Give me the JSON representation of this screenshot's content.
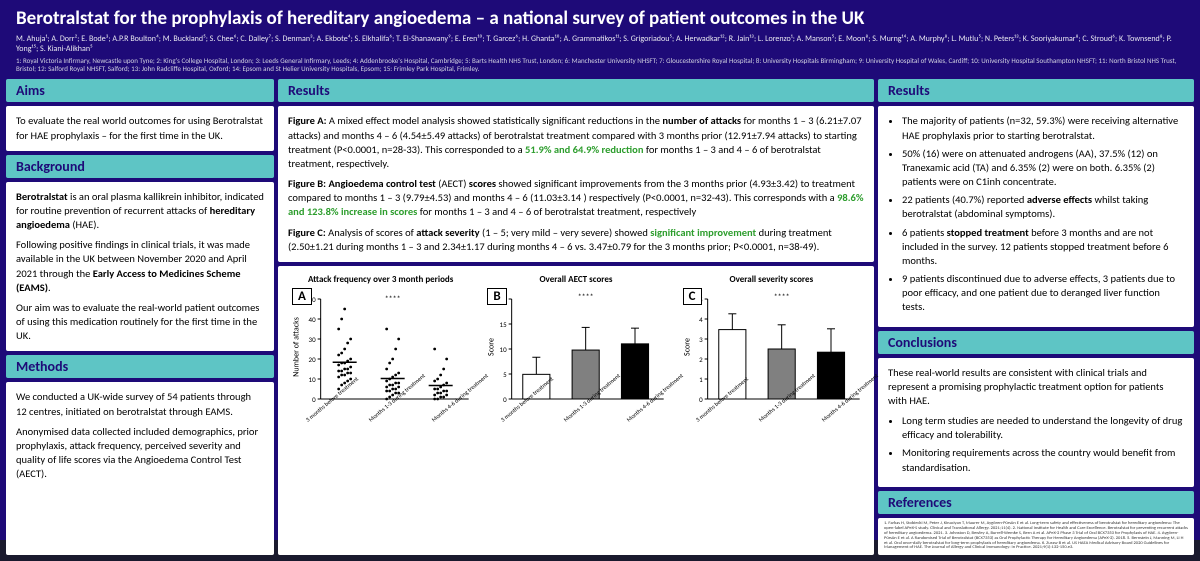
{
  "header": {
    "title": "Berotralstat for the prophylaxis of hereditary angioedema – a national survey of patient outcomes in the UK",
    "authors": "M. Ahuja¹; A. Dorr²; E. Bode³; A.P.R Boulton⁴; M. Buckland⁵; S. Chee⁶; C. Dalley⁷; S. Denman³; A. Ekbote⁴; S. Elkhalifa⁶; T. El-Shanawany⁹; E. Eren¹⁰; T. Garcez⁶; H. Ghanta¹⁰; A. Grammatikos¹¹; S. Grigoriadou⁵; A. Herwadkar¹²; R. Jain¹³; L. Lorenzo¹; A. Manson⁵; E. Moon⁸; S. Murng¹⁴; A. Murphy⁸; L. Mutlu⁵; N. Peters¹³; K. Sooriyakumar⁸; C. Stroud⁶; K. Townsend⁸; P. Yong¹⁵; S. Kiani-Alikhan⁵",
    "affils": "1: Royal Victoria Infirmary, Newcastle upon Tyne; 2: King's College Hospital, London; 3: Leeds General Infirmary, Leeds; 4: Addenbrooke's Hospital, Cambridge; 5: Barts Health NHS Trust, London; 6: Manchester University NHSFT; 7: Gloucestershire Royal Hospital; 8: University Hospitals Birmingham; 9: University Hospital of Wales, Cardiff; 10: University Hospital Southampton NHSFT; 11: North Bristol NHS Trust, Bristol; 12: Salford Royal NHSFT, Salford; 13: John Radcliffe Hospital, Oxford; 14: Epsom and St Helier University Hospitals, Epsom; 15: Frimley Park Hospital, Frimley."
  },
  "labels": {
    "aims": "Aims",
    "background": "Background",
    "methods": "Methods",
    "results": "Results",
    "conclusions": "Conclusions",
    "references": "References"
  },
  "aims": {
    "p1": "To evaluate the real world outcomes for using Berotralstat for HAE prophylaxis – for the first time in the UK."
  },
  "background": {
    "p1a": "Berotralstat ",
    "p1b": "is an oral plasma kallikrein inhibitor, indicated for routine prevention of recurrent attacks of ",
    "p1c": "hereditary angioedema",
    "p1d": " (HAE).",
    "p2a": "Following positive findings in clinical trials, it was made available in the UK between November 2020 and April 2021 through the ",
    "p2b": "Early Access to Medicines Scheme (EAMS)",
    "p3": "Our aim was to evaluate the real-world patient outcomes of using this medication routinely for the first time in the UK."
  },
  "methods": {
    "p1": "We conducted a UK-wide survey of 54 patients through 12 centres, initiated on berotralstat through EAMS.",
    "p2": "Anonymised data collected included demographics, prior prophylaxis, attack frequency, perceived severity and quality of life scores via the Angioedema Control Test (AECT)."
  },
  "resultsMid": {
    "fa1": "Figure A:",
    "fa2": " A mixed effect model analysis showed statistically significant reductions in the ",
    "fa3": "number of attacks",
    "fa4": " for months 1 – 3 (6.21±7.07 attacks) and months 4 – 6 (4.54±5.49 attacks) of berotralstat treatment compared with 3 months prior (12.91±7.94 attacks) to starting treatment (P<0.0001, n=28-33). This corresponded to a ",
    "fa5": "51.9% and 64.9% reduction",
    "fa6": " for months 1 – 3 and 4 – 6 of berotralstat treatment, respectively.",
    "fb1": "Figure B: Angioedema control test",
    "fb2": " (AECT) ",
    "fb3": "scores",
    "fb4": " showed significant improvements from the 3 months prior (4.93±3.42) to treatment compared to months 1 – 3 (9.79±4.53) and months 4 – 6 (11.03±3.14 ) respectively (P<0.0001, n=32-43). This corresponds with a ",
    "fb5": "98.6% and 123.8% increase in scores",
    "fb6": " for months 1 – 3 and 4 – 6 of berotralstat treatment, respectively",
    "fc1": "Figure C:",
    "fc2": " Analysis of scores of ",
    "fc3": "attack severity",
    "fc4": " (1 – 5; very mild – very severe) showed ",
    "fc5": "significant improvement",
    "fc6": " during treatment (2.50±1.21 during months 1 – 3 and 2.34±1.17 during months 4 – 6 vs. 3.47±0.79 for the 3 months prior; P<0.0001, n=38-49)."
  },
  "charts": {
    "a": {
      "tag": "A",
      "title": "Attack frequency over 3 month periods",
      "ylabel": "Number of attacks",
      "ymax": 50,
      "ytick": 10,
      "points": [
        {
          "x": 0,
          "vals": [
            5,
            7,
            8,
            9,
            10,
            11,
            12,
            12,
            13,
            13,
            14,
            14,
            15,
            15,
            16,
            17,
            18,
            18,
            19,
            20,
            22,
            23,
            25,
            28,
            30,
            35,
            40,
            45
          ]
        },
        {
          "x": 1,
          "vals": [
            0,
            1,
            2,
            3,
            3,
            4,
            4,
            5,
            5,
            6,
            6,
            7,
            7,
            8,
            8,
            9,
            10,
            11,
            12,
            13,
            15,
            18,
            20,
            25,
            30,
            35
          ]
        },
        {
          "x": 2,
          "vals": [
            0,
            0,
            1,
            1,
            2,
            2,
            3,
            3,
            4,
            4,
            5,
            5,
            6,
            7,
            8,
            9,
            10,
            12,
            15,
            20,
            25
          ]
        }
      ],
      "cats": [
        "3 months before treatment",
        "Months 1-3 during treatment",
        "Months 4-6 during treatment"
      ]
    },
    "b": {
      "tag": "B",
      "title": "Overall AECT scores",
      "ylabel": "Score",
      "ymax": 20,
      "ytick": 5,
      "bars": [
        {
          "mean": 4.93,
          "sd": 3.42,
          "fill": "#ffffff"
        },
        {
          "mean": 9.79,
          "sd": 4.53,
          "fill": "#808080"
        },
        {
          "mean": 11.03,
          "sd": 3.14,
          "fill": "#000000"
        }
      ],
      "cats": [
        "3 months before treatment",
        "Months 1-3 during treatment",
        "Months 4-6 during treatment"
      ]
    },
    "c": {
      "tag": "C",
      "title": "Overall severity scores",
      "ylabel": "Score",
      "ymax": 5,
      "ytick": 1,
      "bars": [
        {
          "mean": 3.47,
          "sd": 0.79,
          "fill": "#ffffff"
        },
        {
          "mean": 2.5,
          "sd": 1.21,
          "fill": "#808080"
        },
        {
          "mean": 2.34,
          "sd": 1.17,
          "fill": "#000000"
        }
      ],
      "cats": [
        "3 months before treatment",
        "Months 1-3 during treatment",
        "Months 4-6 during treatment"
      ]
    },
    "sig": "****"
  },
  "resultsRight": {
    "li1": "The majority of patients (n=32, 59.3%) were receiving alternative HAE prophylaxis prior to starting berotralstat.",
    "li2": "50% (16) were on attenuated androgens (AA), 37.5% (12) on Tranexamic acid (TA) and 6.35% (2) were on both. 6.35% (2) patients were on C1inh concentrate.",
    "li3a": "22 patients (40.7%) reported ",
    "li3b": "adverse effects",
    "li3c": " whilst taking berotralstat (abdominal symptoms).",
    "li4a": "6 patients ",
    "li4b": "stopped treatment",
    "li4c": " before 3 months and are not included in the survey.  12 patients stopped treatment before 6 months.",
    "li5": "9 patients discontinued due to adverse effects, 3 patients due to poor efficacy, and one patient due to deranged liver function tests."
  },
  "conclusions": {
    "p1": "These real-world results are consistent with clinical trials and represent a promising prophylactic treatment option for patients with HAE.",
    "li1": "Long term studies are needed to understand the longevity of drug efficacy and tolerability.",
    "li2": "Monitoring requirements across the country would benefit from standardisation."
  },
  "references": "1. Farkas H, Stobiecki M, Peter J, Kinaciyan T, Maurer M, Aygören-Pürsün E et al. Long-term safety and effectiveness of berotralstat for hereditary angioedema: The open-label APeX-S study. Clinical and Translational Allergy. 2021;11(4). 2. National Institute for Health and Care Excellence. Berotralstat for preventing recurrent attacks of hereditary angioedema. 2021. 3. Johnston D, Bewley A, Burrell-Wemke S, Bern A et al. APeX-2 Phase 3 Trial of Oral BCX7353 for Prophylaxis of HAE. 4. Aygören-Pürsün E et al. A Randomised Trial of Berotralstat (BCX7353) as Oral Prophylactic Therapy for Hereditary Angioedema (APeX-2). 2018. 5. Bernstein J, Manning M, Li H et al. Oral once-daily berotralstat for long-term prophylaxis of hereditary angioedema. 6. Zuraw B et al. US HAEA Medical Advisory Board 2020 Guidelines for Management of HAE. The Journal of Allergy and Clinical Immunology: In Practice. 2021;9(1):132-150.e3."
}
